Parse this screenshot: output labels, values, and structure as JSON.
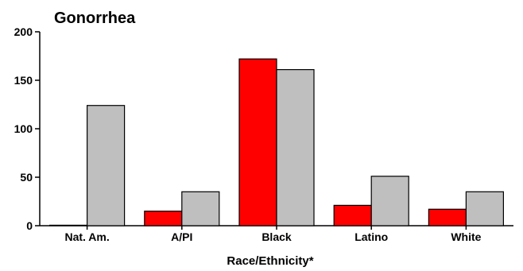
{
  "chart_data": {
    "type": "bar",
    "title": "Gonorrhea",
    "xlabel": "Race/Ethnicity*",
    "ylabel": "",
    "categories": [
      "Nat. Am.",
      "A/PI",
      "Black",
      "Latino",
      "White"
    ],
    "series": [
      {
        "values": [
          0.5,
          15,
          172,
          21,
          17
        ],
        "color": "#ff0000"
      },
      {
        "values": [
          124,
          35,
          161,
          51,
          35
        ],
        "color": "#bfbfbf"
      }
    ],
    "ylim": [
      0,
      200
    ],
    "yticks": [
      0,
      50,
      100,
      150,
      200
    ],
    "grid": false,
    "legend": "none"
  }
}
